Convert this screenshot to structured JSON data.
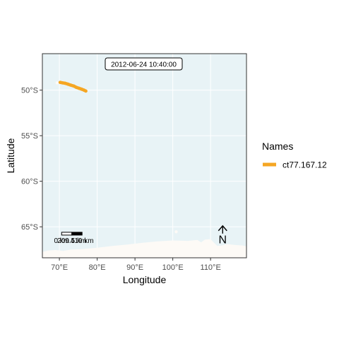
{
  "map": {
    "timestamp": "2012-06-24 10:40:00",
    "xlabel": "Longitude",
    "ylabel": "Latitude",
    "x_ticks": [
      {
        "value": 70,
        "label": "70°E"
      },
      {
        "value": 80,
        "label": "80°E"
      },
      {
        "value": 90,
        "label": "90°E"
      },
      {
        "value": 100,
        "label": "100°E"
      },
      {
        "value": 110,
        "label": "110°E"
      }
    ],
    "y_ticks": [
      {
        "value": -50,
        "label": "50°S"
      },
      {
        "value": -55,
        "label": "55°S"
      },
      {
        "value": -60,
        "label": "60°S"
      },
      {
        "value": -65,
        "label": "65°S"
      }
    ],
    "lon_range": [
      65.5,
      119.5
    ],
    "lat_range": [
      -68.4,
      -46.0
    ],
    "grid": true,
    "colors": {
      "ocean": "#e8f3f6",
      "land": "#fdfaf6",
      "track": "#f5a623",
      "gridline": "#ffffff"
    },
    "scale_bar": {
      "labels": [
        "0 km",
        "209.5 km",
        "419 km"
      ],
      "start_lon": 70.6,
      "end_lon": 76.0,
      "lat": -65.6
    },
    "north_arrow": {
      "label": "N",
      "lon": 113.2,
      "lat": -65.9
    },
    "track": {
      "name": "ct77.167.12",
      "points": [
        [
          70.2,
          -49.15
        ],
        [
          70.8,
          -49.2
        ],
        [
          71.5,
          -49.25
        ],
        [
          72.3,
          -49.35
        ],
        [
          73.0,
          -49.45
        ],
        [
          73.8,
          -49.55
        ],
        [
          74.5,
          -49.7
        ],
        [
          75.2,
          -49.8
        ],
        [
          75.9,
          -49.9
        ],
        [
          76.5,
          -50.0
        ],
        [
          77.0,
          -50.1
        ]
      ]
    },
    "antarctic_coast": [
      [
        65.5,
        -68.4
      ],
      [
        65.5,
        -67.75
      ],
      [
        67.0,
        -67.6
      ],
      [
        69.0,
        -67.55
      ],
      [
        71.0,
        -67.65
      ],
      [
        73.0,
        -67.5
      ],
      [
        76.0,
        -67.45
      ],
      [
        80.0,
        -67.3
      ],
      [
        84.0,
        -67.1
      ],
      [
        88.0,
        -66.95
      ],
      [
        92.0,
        -66.75
      ],
      [
        96.0,
        -66.6
      ],
      [
        100.0,
        -66.5
      ],
      [
        104.0,
        -66.55
      ],
      [
        106.5,
        -66.45
      ],
      [
        107.5,
        -66.7
      ],
      [
        108.5,
        -66.4
      ],
      [
        110.0,
        -66.35
      ],
      [
        110.8,
        -66.7
      ],
      [
        111.8,
        -67.1
      ],
      [
        113.0,
        -67.05
      ],
      [
        114.5,
        -66.9
      ],
      [
        116.5,
        -67.0
      ],
      [
        118.5,
        -67.05
      ],
      [
        119.5,
        -67.15
      ],
      [
        119.5,
        -68.4
      ]
    ],
    "islands": [
      {
        "lon": 69.4,
        "lat": -49.2
      },
      {
        "lon": 100.9,
        "lat": -65.55
      }
    ]
  },
  "legend": {
    "title": "Names",
    "items": [
      {
        "label": "ct77.167.12",
        "color": "#f5a623"
      }
    ]
  }
}
